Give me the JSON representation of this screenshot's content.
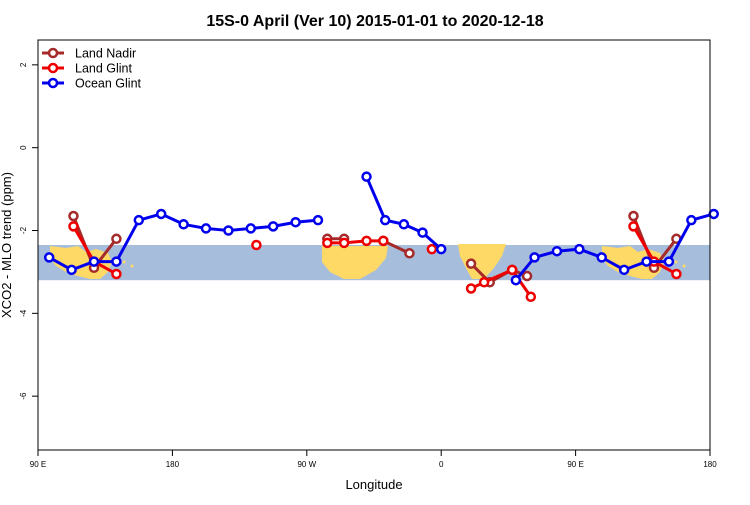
{
  "chart_data": {
    "type": "line",
    "title": "15S-0 April (Ver 10)   2015-01-01 to 2020-12-18",
    "xlabel": "Longitude",
    "ylabel": "XCO2 - MLO trend (ppm)",
    "xlim": [
      90,
      270
    ],
    "ylim": [
      -7.3,
      2.6
    ],
    "x_ticks": [
      {
        "value": 90,
        "label": "90 E"
      },
      {
        "value": 126,
        "label": "180"
      },
      {
        "value": 162,
        "label": "90 W"
      },
      {
        "value": 198,
        "label": "0"
      },
      {
        "value": 234,
        "label": "90 E"
      },
      {
        "value": 270,
        "label": "180"
      }
    ],
    "y_ticks": [
      {
        "value": 2,
        "label": "2"
      },
      {
        "value": 0,
        "label": "0"
      },
      {
        "value": -2,
        "label": "-2"
      },
      {
        "value": -4,
        "label": "-4"
      },
      {
        "value": -6,
        "label": "-6"
      }
    ],
    "grid": false,
    "legend_position": "top-left",
    "map_band": {
      "y_top": -2.35,
      "y_bottom": -3.2,
      "ocean_color": "#a6bddb",
      "land_color": "#ffd966"
    },
    "series": [
      {
        "name": "Land Nadir",
        "color": "#a52a2a",
        "segments": [
          {
            "x": [
              99.5,
              105,
              111
            ],
            "y": [
              -1.65,
              -2.9,
              -2.2
            ]
          },
          {
            "x": [
              167.5,
              172
            ],
            "y": [
              -2.2,
              -2.2
            ]
          },
          {
            "x": [
              182.5,
              189.5
            ],
            "y": [
              -2.25,
              -2.55
            ]
          },
          {
            "x": [
              206,
              211,
              217,
              221
            ],
            "y": [
              -2.8,
              -3.25,
              -2.95,
              -3.1
            ]
          },
          {
            "x": [
              249.5,
              255,
              261
            ],
            "y": [
              -1.65,
              -2.9,
              -2.2
            ]
          }
        ]
      },
      {
        "name": "Land Glint",
        "color": "#ee0000",
        "segments": [
          {
            "x": [
              99.5,
              105,
              111
            ],
            "y": [
              -1.9,
              -2.75,
              -3.05
            ]
          },
          {
            "x": [
              148.5
            ],
            "y": [
              -2.35
            ]
          },
          {
            "x": [
              167.5,
              172,
              178,
              182.5
            ],
            "y": [
              -2.3,
              -2.3,
              -2.25,
              -2.25
            ]
          },
          {
            "x": [
              195.5
            ],
            "y": [
              -2.45
            ]
          },
          {
            "x": [
              206,
              209.5,
              217,
              222
            ],
            "y": [
              -3.4,
              -3.25,
              -2.95,
              -3.6
            ]
          },
          {
            "x": [
              249.5,
              255,
              261
            ],
            "y": [
              -1.9,
              -2.75,
              -3.05
            ]
          }
        ]
      },
      {
        "name": "Ocean Glint",
        "color": "#0000ee",
        "segments": [
          {
            "x": [
              93,
              99,
              105,
              111,
              117,
              123,
              129,
              135,
              141,
              147,
              153,
              159,
              165
            ],
            "y": [
              -2.65,
              -2.95,
              -2.75,
              -2.75,
              -1.75,
              -1.6,
              -1.85,
              -1.95,
              -2.0,
              -1.95,
              -1.9,
              -1.8,
              -1.75
            ]
          },
          {
            "x": [
              178,
              183,
              188,
              193,
              198
            ],
            "y": [
              -0.7,
              -1.75,
              -1.85,
              -2.05,
              -2.45
            ]
          },
          {
            "x": [
              218,
              223,
              229,
              235,
              241,
              247,
              253,
              259,
              265,
              271
            ],
            "y": [
              -3.2,
              -2.65,
              -2.5,
              -2.45,
              -2.65,
              -2.95,
              -2.75,
              -2.75,
              -1.75,
              -1.6
            ]
          }
        ]
      }
    ]
  }
}
